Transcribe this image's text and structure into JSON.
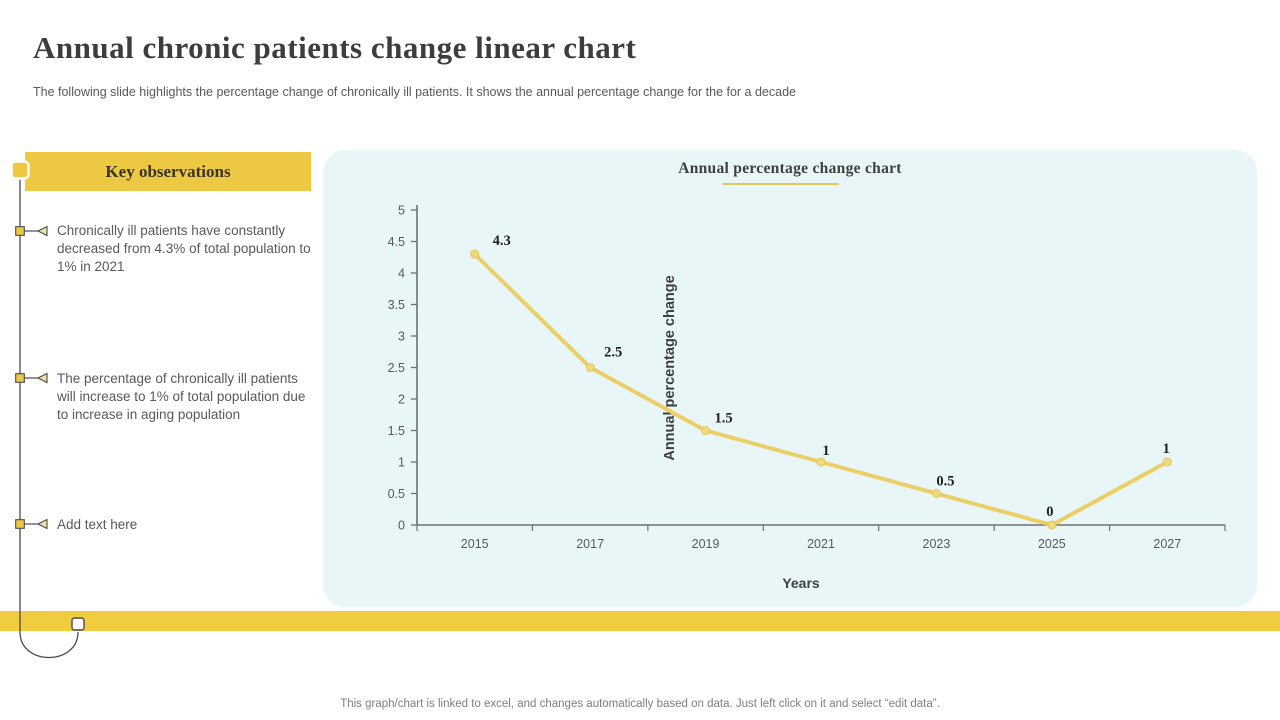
{
  "slide": {
    "title": "Annual chronic patients change linear chart",
    "subtitle": "The following slide highlights the percentage change of chronically ill patients. It shows the annual percentage change for the for a decade",
    "footer": "This graph/chart is linked to excel, and changes automatically based on data. Just left click on it and select “edit data”."
  },
  "observations": {
    "header": "Key observations",
    "items": [
      {
        "text": "Chronically ill patients have constantly decreased from 4.3% of total population to 1% in 2021"
      },
      {
        "text": "The percentage of chronically ill patients will increase to 1% of total population due to increase in aging population"
      },
      {
        "text": "Add text here"
      }
    ]
  },
  "chart_data": {
    "type": "line",
    "title": "Annual percentage change chart",
    "categories": [
      "2015",
      "2017",
      "2019",
      "2021",
      "2023",
      "2025",
      "2027"
    ],
    "values": [
      4.3,
      2.5,
      1.5,
      1,
      0.5,
      0,
      1
    ],
    "data_labels": [
      "4.3",
      "2.5",
      "1.5",
      "1",
      "0.5",
      "0",
      "1"
    ],
    "xlabel": "Years",
    "ylabel": "Annual percentage change",
    "ylim": [
      0,
      5
    ],
    "ytick_step": 0.5,
    "ytick_labels": [
      "5",
      "4.5",
      "4",
      "3.5",
      "3",
      "2.5",
      "2",
      "1.5",
      "1",
      "0.5",
      "0"
    ],
    "grid": false,
    "legend": false
  },
  "colors": {
    "accent_yellow": "#EDC843",
    "bottom_bar_yellow": "#F0CC3F",
    "panel_bg": "#E8F6F8",
    "line_gold": "#EBCF66",
    "marker_gold": "#F0DA7E",
    "marker_stroke": "#E4C554",
    "axis_gray": "#6b7074",
    "tick_text_gray": "#595959",
    "data_label_dark": "#1f1f1f",
    "connector_dark": "#4a4a52"
  }
}
